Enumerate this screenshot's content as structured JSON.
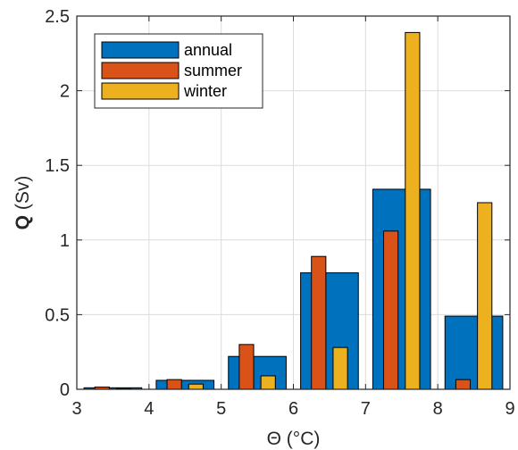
{
  "chart_data": {
    "type": "bar",
    "grid": true,
    "legend_position": "top-left",
    "xlabel": "Θ (°C)",
    "ylabel_bold": "Q",
    "ylabel_rest": " (Sv)",
    "xlim": [
      3,
      9
    ],
    "ylim": [
      0,
      2.5
    ],
    "xticks": [
      3,
      4,
      5,
      6,
      7,
      8,
      9
    ],
    "yticks": [
      0,
      0.5,
      1,
      1.5,
      2,
      2.5
    ],
    "ytick_labels": [
      "0",
      "0.5",
      "1",
      "1.5",
      "2",
      "2.5"
    ],
    "series": [
      {
        "name": "annual",
        "color": "#0072BD",
        "bins": [
          {
            "x0": 3.1,
            "x1": 3.9,
            "value": 0.01
          },
          {
            "x0": 4.1,
            "x1": 4.9,
            "value": 0.06
          },
          {
            "x0": 5.1,
            "x1": 5.9,
            "value": 0.22
          },
          {
            "x0": 6.1,
            "x1": 6.9,
            "value": 0.78
          },
          {
            "x0": 7.1,
            "x1": 7.9,
            "value": 1.34
          },
          {
            "x0": 8.1,
            "x1": 8.9,
            "value": 0.49
          }
        ]
      },
      {
        "name": "summer",
        "color": "#D95319",
        "bins": [
          {
            "x0": 3.25,
            "x1": 3.45,
            "value": 0.015
          },
          {
            "x0": 4.25,
            "x1": 4.45,
            "value": 0.065
          },
          {
            "x0": 5.25,
            "x1": 5.45,
            "value": 0.3
          },
          {
            "x0": 6.25,
            "x1": 6.45,
            "value": 0.89
          },
          {
            "x0": 7.25,
            "x1": 7.45,
            "value": 1.06
          },
          {
            "x0": 8.25,
            "x1": 8.45,
            "value": 0.065
          }
        ]
      },
      {
        "name": "winter",
        "color": "#EDB120",
        "bins": [
          {
            "x0": 3.55,
            "x1": 3.75,
            "value": 0.005
          },
          {
            "x0": 4.55,
            "x1": 4.75,
            "value": 0.035
          },
          {
            "x0": 5.55,
            "x1": 5.75,
            "value": 0.09
          },
          {
            "x0": 6.55,
            "x1": 6.75,
            "value": 0.28
          },
          {
            "x0": 7.55,
            "x1": 7.75,
            "value": 2.39
          },
          {
            "x0": 8.55,
            "x1": 8.75,
            "value": 1.25
          }
        ]
      }
    ]
  }
}
